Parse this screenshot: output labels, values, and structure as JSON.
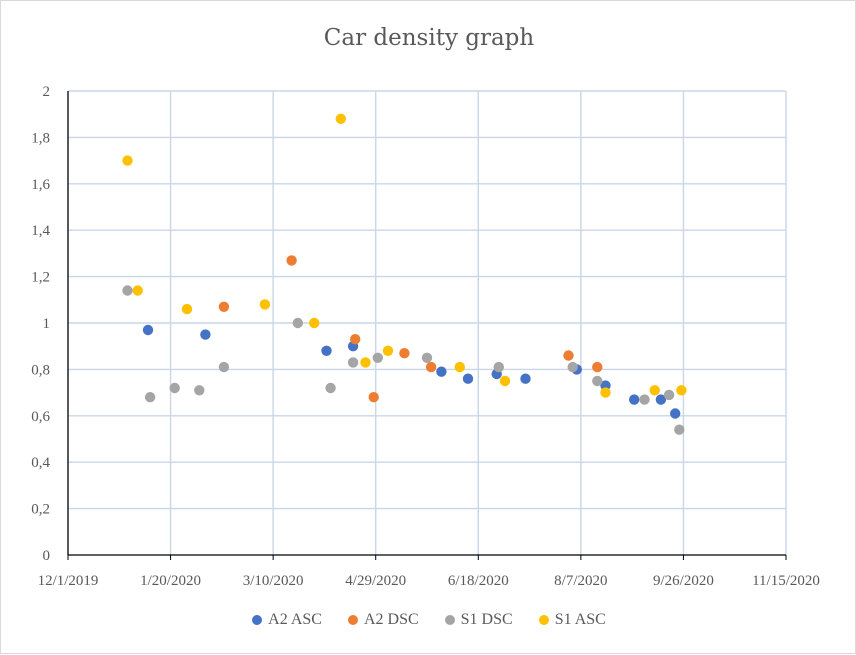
{
  "chart_data": {
    "type": "scatter",
    "title": "Car density graph",
    "xlabel": "",
    "ylabel": "",
    "x_ticks": [
      "12/1/2019",
      "1/20/2020",
      "3/10/2020",
      "4/29/2020",
      "6/18/2020",
      "8/7/2020",
      "9/26/2020",
      "11/15/2020"
    ],
    "xlim": [
      "2019-12-01",
      "2020-11-15"
    ],
    "y_ticks": [
      "0",
      "0,2",
      "0,4",
      "0,6",
      "0,8",
      "1",
      "1,2",
      "1,4",
      "1,6",
      "1,8",
      "2"
    ],
    "ylim": [
      0,
      2
    ],
    "grid": true,
    "legend_position": "bottom",
    "series": [
      {
        "name": "A2 ASC",
        "color": "#4472c4",
        "points": [
          [
            "2020-01-09",
            0.97
          ],
          [
            "2020-02-06",
            0.95
          ],
          [
            "2020-04-05",
            0.88
          ],
          [
            "2020-04-18",
            0.9
          ],
          [
            "2020-05-31",
            0.79
          ],
          [
            "2020-06-13",
            0.76
          ],
          [
            "2020-06-27",
            0.78
          ],
          [
            "2020-07-11",
            0.76
          ],
          [
            "2020-08-05",
            0.8
          ],
          [
            "2020-08-19",
            0.73
          ],
          [
            "2020-09-02",
            0.67
          ],
          [
            "2020-09-15",
            0.67
          ],
          [
            "2020-09-22",
            0.61
          ]
        ]
      },
      {
        "name": "A2 DSC",
        "color": "#ed7d31",
        "points": [
          [
            "2020-02-15",
            1.07
          ],
          [
            "2020-03-19",
            1.27
          ],
          [
            "2020-04-19",
            0.93
          ],
          [
            "2020-04-28",
            0.68
          ],
          [
            "2020-05-13",
            0.87
          ],
          [
            "2020-05-26",
            0.81
          ],
          [
            "2020-08-01",
            0.86
          ],
          [
            "2020-08-15",
            0.81
          ]
        ]
      },
      {
        "name": "S1 DSC",
        "color": "#a5a5a5",
        "points": [
          [
            "2019-12-30",
            1.14
          ],
          [
            "2020-01-10",
            0.68
          ],
          [
            "2020-01-22",
            0.72
          ],
          [
            "2020-02-03",
            0.71
          ],
          [
            "2020-02-15",
            0.81
          ],
          [
            "2020-03-22",
            1.0
          ],
          [
            "2020-04-07",
            0.72
          ],
          [
            "2020-04-18",
            0.83
          ],
          [
            "2020-04-30",
            0.85
          ],
          [
            "2020-05-24",
            0.85
          ],
          [
            "2020-06-28",
            0.81
          ],
          [
            "2020-08-03",
            0.81
          ],
          [
            "2020-08-15",
            0.75
          ],
          [
            "2020-09-07",
            0.67
          ],
          [
            "2020-09-19",
            0.69
          ],
          [
            "2020-09-24",
            0.54
          ]
        ]
      },
      {
        "name": "S1 ASC",
        "color": "#ffc000",
        "points": [
          [
            "2019-12-30",
            1.7
          ],
          [
            "2020-01-04",
            1.14
          ],
          [
            "2020-01-28",
            1.06
          ],
          [
            "2020-03-06",
            1.08
          ],
          [
            "2020-03-30",
            1.0
          ],
          [
            "2020-04-12",
            1.88
          ],
          [
            "2020-04-24",
            0.83
          ],
          [
            "2020-05-05",
            0.88
          ],
          [
            "2020-06-09",
            0.81
          ],
          [
            "2020-07-01",
            0.75
          ],
          [
            "2020-08-19",
            0.7
          ],
          [
            "2020-09-12",
            0.71
          ],
          [
            "2020-09-25",
            0.71
          ]
        ]
      }
    ]
  }
}
